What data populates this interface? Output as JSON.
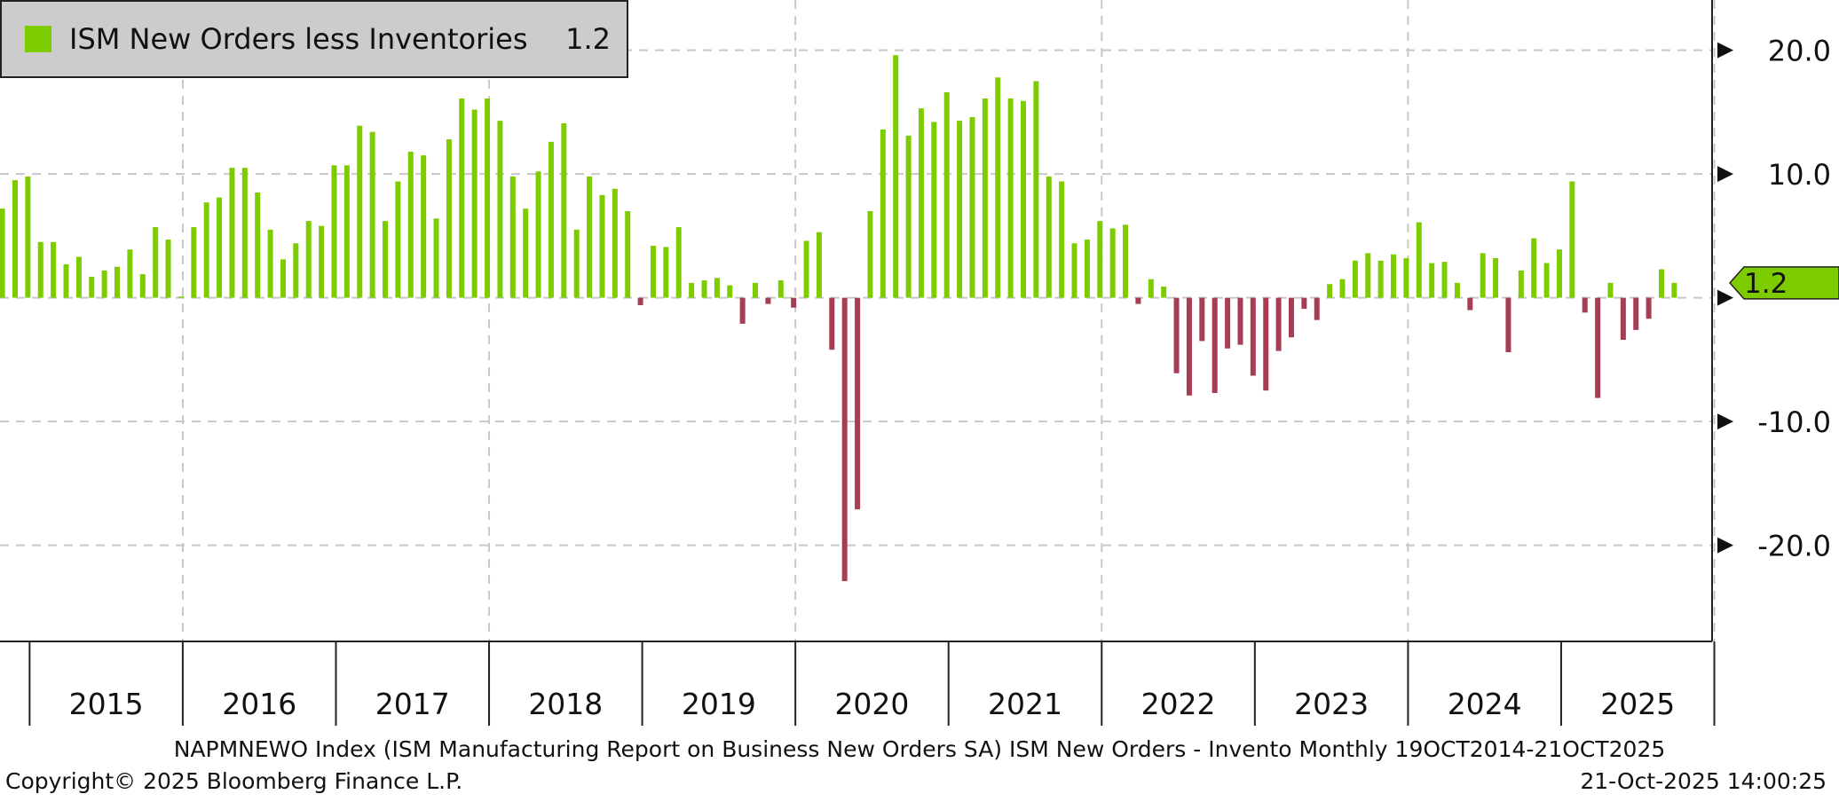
{
  "chart_data": {
    "type": "bar",
    "title": "",
    "legend": {
      "label": "ISM New Orders less Inventories",
      "last_value": "1.2",
      "placement": "top-left"
    },
    "last_value_label": "1.2",
    "start_month": "2014-10",
    "frequency": "monthly",
    "x_tick_labels": [
      "2015",
      "2016",
      "2017",
      "2018",
      "2019",
      "2020",
      "2021",
      "2022",
      "2023",
      "2024",
      "2025"
    ],
    "y_tick_labels": [
      "20.0",
      "10.0",
      "-10.0",
      "-20.0"
    ],
    "y_ticks": [
      20,
      10,
      0,
      -10,
      -20
    ],
    "ylim": [
      -27.8,
      24
    ],
    "grid": true,
    "y_axis_side": "right",
    "positive_color": "#7dcc00",
    "negative_color": "#a63d55",
    "values": [
      7.2,
      9.5,
      9.8,
      4.5,
      4.5,
      2.7,
      3.3,
      1.7,
      2.2,
      2.5,
      3.9,
      1.9,
      5.7,
      4.7,
      0.1,
      5.7,
      7.7,
      8.1,
      10.5,
      10.5,
      8.5,
      5.5,
      3.1,
      4.4,
      6.2,
      5.8,
      10.7,
      10.7,
      13.9,
      13.4,
      6.2,
      9.4,
      11.8,
      11.5,
      6.4,
      12.8,
      16.1,
      15.2,
      16.1,
      14.3,
      9.8,
      7.2,
      10.2,
      12.6,
      14.1,
      5.5,
      9.8,
      8.3,
      8.8,
      7.0,
      -0.6,
      4.2,
      4.1,
      5.7,
      1.2,
      1.4,
      1.6,
      1.0,
      -2.1,
      1.2,
      -0.5,
      1.4,
      -0.8,
      4.6,
      5.3,
      -4.2,
      -22.9,
      -17.1,
      7.0,
      13.6,
      19.6,
      13.1,
      15.3,
      14.2,
      16.6,
      14.3,
      14.6,
      16.1,
      17.8,
      16.1,
      15.9,
      17.5,
      9.8,
      9.4,
      4.4,
      4.7,
      6.2,
      5.6,
      5.9,
      -0.5,
      1.5,
      0.9,
      -6.1,
      -7.9,
      -3.5,
      -7.7,
      -4.1,
      -3.8,
      -6.3,
      -7.5,
      -4.3,
      -3.2,
      -0.9,
      -1.8,
      1.1,
      1.5,
      3.0,
      3.6,
      3.0,
      3.5,
      3.2,
      6.1,
      2.8,
      2.9,
      1.2,
      -1.0,
      3.6,
      3.2,
      -4.4,
      2.2,
      4.8,
      2.8,
      3.9,
      9.4,
      -1.2,
      -8.1,
      1.2,
      -3.4,
      -2.6,
      -1.7,
      2.3,
      1.2
    ]
  },
  "footer": {
    "source": "NAPMNEWO Index (ISM Manufacturing Report on Business New Orders SA) ISM New Orders - Invento Monthly 19OCT2014-21OCT2025",
    "copyright": "Copyright© 2025 Bloomberg Finance L.P.",
    "timestamp": "21-Oct-2025  14:00:25"
  }
}
